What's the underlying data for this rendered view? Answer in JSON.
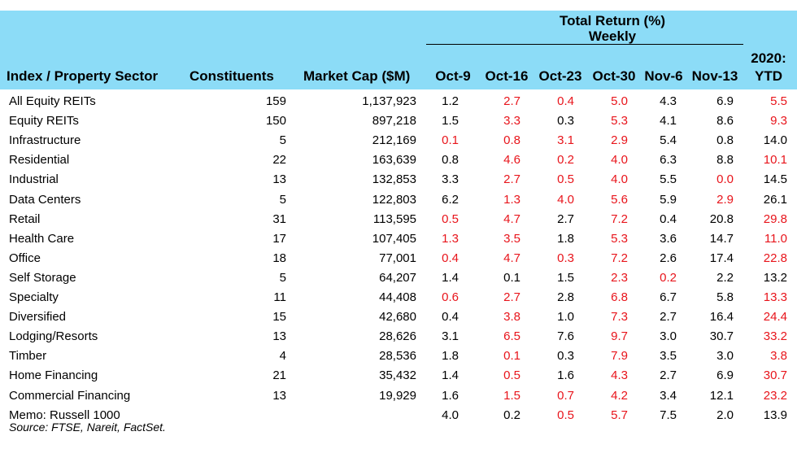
{
  "header": {
    "group_title": "Total Return (%)",
    "group_subtitle": "Weekly",
    "col_sector": "Index / Property Sector",
    "col_constituents": "Constituents",
    "col_market_cap": "Market Cap ($M)",
    "weeks": [
      "Oct-9",
      "Oct-16",
      "Oct-23",
      "Oct-30",
      "Nov-6",
      "Nov-13"
    ],
    "ytd_line1": "2020:",
    "ytd_line2": "YTD"
  },
  "colors": {
    "header_band": "#8cdcf7",
    "highlight": "#e8141b",
    "text": "#000000"
  },
  "rows": [
    {
      "name": "All Equity REITs",
      "constituents": "159",
      "market_cap": "1,137,923",
      "weekly": [
        "1.2",
        "2.7",
        "0.4",
        "5.0",
        "4.3",
        "6.9"
      ],
      "ytd": "5.5",
      "red": [
        false,
        true,
        true,
        true,
        false,
        false,
        true
      ]
    },
    {
      "name": "Equity REITs",
      "constituents": "150",
      "market_cap": "897,218",
      "weekly": [
        "1.5",
        "3.3",
        "0.3",
        "5.3",
        "4.1",
        "8.6"
      ],
      "ytd": "9.3",
      "red": [
        false,
        true,
        false,
        true,
        false,
        false,
        true
      ]
    },
    {
      "name": "Infrastructure",
      "constituents": "5",
      "market_cap": "212,169",
      "weekly": [
        "0.1",
        "0.8",
        "3.1",
        "2.9",
        "5.4",
        "0.8"
      ],
      "ytd": "14.0",
      "red": [
        true,
        true,
        true,
        true,
        false,
        false,
        false
      ]
    },
    {
      "name": "Residential",
      "constituents": "22",
      "market_cap": "163,639",
      "weekly": [
        "0.8",
        "4.6",
        "0.2",
        "4.0",
        "6.3",
        "8.8"
      ],
      "ytd": "10.1",
      "red": [
        false,
        true,
        true,
        true,
        false,
        false,
        true
      ]
    },
    {
      "name": "Industrial",
      "constituents": "13",
      "market_cap": "132,853",
      "weekly": [
        "3.3",
        "2.7",
        "0.5",
        "4.0",
        "5.5",
        "0.0"
      ],
      "ytd": "14.5",
      "red": [
        false,
        true,
        true,
        true,
        false,
        true,
        false
      ]
    },
    {
      "name": "Data Centers",
      "constituents": "5",
      "market_cap": "122,803",
      "weekly": [
        "6.2",
        "1.3",
        "4.0",
        "5.6",
        "5.9",
        "2.9"
      ],
      "ytd": "26.1",
      "red": [
        false,
        true,
        true,
        true,
        false,
        true,
        false
      ]
    },
    {
      "name": "Retail",
      "constituents": "31",
      "market_cap": "113,595",
      "weekly": [
        "0.5",
        "4.7",
        "2.7",
        "7.2",
        "0.4",
        "20.8"
      ],
      "ytd": "29.8",
      "red": [
        true,
        true,
        false,
        true,
        false,
        false,
        true
      ]
    },
    {
      "name": "Health Care",
      "constituents": "17",
      "market_cap": "107,405",
      "weekly": [
        "1.3",
        "3.5",
        "1.8",
        "5.3",
        "3.6",
        "14.7"
      ],
      "ytd": "11.0",
      "red": [
        true,
        true,
        false,
        true,
        false,
        false,
        true
      ]
    },
    {
      "name": "Office",
      "constituents": "18",
      "market_cap": "77,001",
      "weekly": [
        "0.4",
        "4.7",
        "0.3",
        "7.2",
        "2.6",
        "17.4"
      ],
      "ytd": "22.8",
      "red": [
        true,
        true,
        true,
        true,
        false,
        false,
        true
      ]
    },
    {
      "name": "Self Storage",
      "constituents": "5",
      "market_cap": "64,207",
      "weekly": [
        "1.4",
        "0.1",
        "1.5",
        "2.3",
        "0.2",
        "2.2"
      ],
      "ytd": "13.2",
      "red": [
        false,
        false,
        false,
        true,
        true,
        false,
        false
      ]
    },
    {
      "name": "Specialty",
      "constituents": "11",
      "market_cap": "44,408",
      "weekly": [
        "0.6",
        "2.7",
        "2.8",
        "6.8",
        "6.7",
        "5.8"
      ],
      "ytd": "13.3",
      "red": [
        true,
        true,
        false,
        true,
        false,
        false,
        true
      ]
    },
    {
      "name": "Diversified",
      "constituents": "15",
      "market_cap": "42,680",
      "weekly": [
        "0.4",
        "3.8",
        "1.0",
        "7.3",
        "2.7",
        "16.4"
      ],
      "ytd": "24.4",
      "red": [
        false,
        true,
        false,
        true,
        false,
        false,
        true
      ]
    },
    {
      "name": "Lodging/Resorts",
      "constituents": "13",
      "market_cap": "28,626",
      "weekly": [
        "3.1",
        "6.5",
        "7.6",
        "9.7",
        "3.0",
        "30.7"
      ],
      "ytd": "33.2",
      "red": [
        false,
        true,
        false,
        true,
        false,
        false,
        true
      ]
    },
    {
      "name": "Timber",
      "constituents": "4",
      "market_cap": "28,536",
      "weekly": [
        "1.8",
        "0.1",
        "0.3",
        "7.9",
        "3.5",
        "3.0"
      ],
      "ytd": "3.8",
      "red": [
        false,
        true,
        false,
        true,
        false,
        false,
        true
      ]
    },
    {
      "name": "Home Financing",
      "constituents": "21",
      "market_cap": "35,432",
      "weekly": [
        "1.4",
        "0.5",
        "1.6",
        "4.3",
        "2.7",
        "6.9"
      ],
      "ytd": "30.7",
      "red": [
        false,
        true,
        false,
        true,
        false,
        false,
        true
      ]
    },
    {
      "name": "Commercial Financing",
      "constituents": "13",
      "market_cap": "19,929",
      "weekly": [
        "1.6",
        "1.5",
        "0.7",
        "4.2",
        "3.4",
        "12.1"
      ],
      "ytd": "23.2",
      "red": [
        false,
        true,
        true,
        true,
        false,
        false,
        true
      ]
    },
    {
      "name": "Memo: Russell 1000",
      "constituents": "",
      "market_cap": "",
      "weekly": [
        "4.0",
        "0.2",
        "0.5",
        "5.7",
        "7.5",
        "2.0"
      ],
      "ytd": "13.9",
      "red": [
        false,
        false,
        true,
        true,
        false,
        false,
        false
      ]
    }
  ],
  "source": "Source: FTSE, Nareit, FactSet."
}
